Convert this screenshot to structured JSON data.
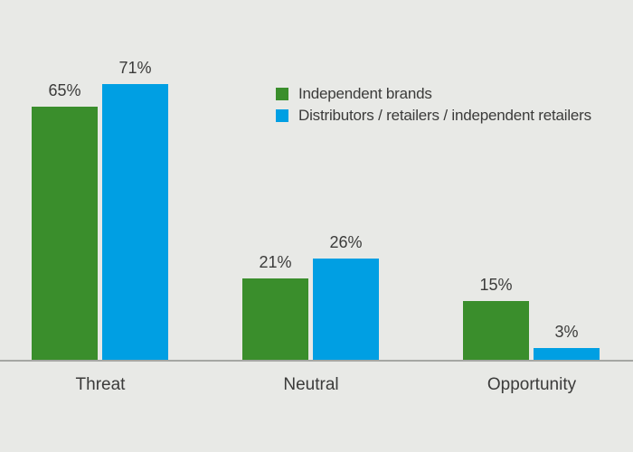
{
  "colors": {
    "background": "#e8e9e6",
    "green_series": "#3a8e2c",
    "blue_series": "#009fe3",
    "text": "#3b3b3a",
    "axis_line": "#a5a7a3"
  },
  "legend": {
    "items": [
      {
        "label": "Independent brands",
        "color": "#3a8e2c"
      },
      {
        "label": "Distributors / retailers / independent retailers",
        "color": "#009fe3"
      }
    ]
  },
  "chart_data": {
    "type": "bar",
    "categories": [
      "Threat",
      "Neutral",
      "Opportunity"
    ],
    "series": [
      {
        "name": "Independent brands",
        "color": "#3a8e2c",
        "values": [
          65,
          21,
          15
        ],
        "labels": [
          "65%",
          "21%",
          "15%"
        ]
      },
      {
        "name": "Distributors / retailers / independent retailers",
        "color": "#009fe3",
        "values": [
          71,
          26,
          3
        ],
        "labels": [
          "71%",
          "26%",
          "3%"
        ]
      }
    ],
    "value_unit": "%",
    "ylim": [
      0,
      100
    ],
    "grid": false,
    "axes_visible": "x-baseline-only",
    "value_labels": true,
    "legend_position": "top-right-of-first-group"
  }
}
